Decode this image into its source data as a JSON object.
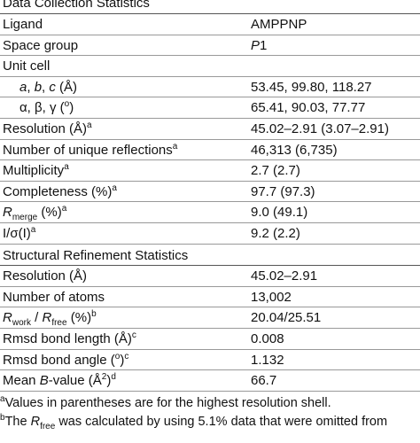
{
  "table": {
    "sections": [
      {
        "title": "Data Collection Statistics",
        "rows": [
          {
            "label": [
              {
                "text": "Ligand"
              }
            ],
            "value": [
              {
                "text": "AMPPNP"
              }
            ]
          },
          {
            "label": [
              {
                "text": "Space group"
              }
            ],
            "value": [
              {
                "italic": "P"
              },
              {
                "text": "1"
              }
            ]
          },
          {
            "label": [
              {
                "text": "Unit cell"
              }
            ],
            "value": []
          },
          {
            "indent": true,
            "label": [
              {
                "italic": "a"
              },
              {
                "text": ", "
              },
              {
                "italic": "b"
              },
              {
                "text": ", "
              },
              {
                "italic": "c"
              },
              {
                "text": " (Å)"
              }
            ],
            "value": [
              {
                "text": "53.45, 99.80, 118.27"
              }
            ]
          },
          {
            "indent": true,
            "label": [
              {
                "text": "α, β, γ ("
              },
              {
                "sup": "o"
              },
              {
                "text": ")"
              }
            ],
            "value": [
              {
                "text": "65.41, 90.03, 77.77"
              }
            ]
          },
          {
            "label": [
              {
                "text": "Resolution (Å)"
              },
              {
                "sup": "a"
              }
            ],
            "value": [
              {
                "text": "45.02–2.91 (3.07–2.91)"
              }
            ]
          },
          {
            "label": [
              {
                "text": "Number of unique reflections"
              },
              {
                "sup": "a"
              }
            ],
            "value": [
              {
                "text": "46,313 (6,735)"
              }
            ]
          },
          {
            "label": [
              {
                "text": "Multiplicity"
              },
              {
                "sup": "a"
              }
            ],
            "value": [
              {
                "text": "2.7 (2.7)"
              }
            ]
          },
          {
            "label": [
              {
                "text": "Completeness (%)"
              },
              {
                "sup": "a"
              }
            ],
            "value": [
              {
                "text": "97.7 (97.3)"
              }
            ]
          },
          {
            "label": [
              {
                "italic": "R"
              },
              {
                "sub": "merge"
              },
              {
                "text": " (%)"
              },
              {
                "sup": "a"
              }
            ],
            "value": [
              {
                "text": "9.0 (49.1)"
              }
            ]
          },
          {
            "label": [
              {
                "text": "I/σ(I)"
              },
              {
                "sup": "a"
              }
            ],
            "value": [
              {
                "text": "9.2 (2.2)"
              }
            ]
          }
        ]
      },
      {
        "title": "Structural Refinement Statistics",
        "rows": [
          {
            "label": [
              {
                "text": "Resolution (Å)"
              }
            ],
            "value": [
              {
                "text": "45.02–2.91"
              }
            ]
          },
          {
            "label": [
              {
                "text": "Number of atoms"
              }
            ],
            "value": [
              {
                "text": "13,002"
              }
            ]
          },
          {
            "label": [
              {
                "italic": "R"
              },
              {
                "sub": "work"
              },
              {
                "text": " / "
              },
              {
                "italic": "R"
              },
              {
                "sub": "free"
              },
              {
                "text": " (%)"
              },
              {
                "sup": "b"
              }
            ],
            "value": [
              {
                "text": "20.04/25.51"
              }
            ]
          },
          {
            "label": [
              {
                "text": "Rmsd bond length (Å)"
              },
              {
                "sup": "c"
              }
            ],
            "value": [
              {
                "text": "0.008"
              }
            ]
          },
          {
            "label": [
              {
                "text": "Rmsd bond angle ("
              },
              {
                "sup": "o"
              },
              {
                "text": ")"
              },
              {
                "sup": "c"
              }
            ],
            "value": [
              {
                "text": "1.132"
              }
            ]
          },
          {
            "label": [
              {
                "text": "Mean "
              },
              {
                "italic": "B"
              },
              {
                "text": "-value (Å"
              },
              {
                "sup": "2"
              },
              {
                "text": ")"
              },
              {
                "sup": "d"
              }
            ],
            "value": [
              {
                "text": "66.7"
              }
            ]
          }
        ]
      }
    ],
    "footnotes": [
      [
        {
          "sup": "a"
        },
        {
          "text": "Values in parentheses are for the highest resolution shell."
        }
      ],
      [
        {
          "sup": "b"
        },
        {
          "text": "The "
        },
        {
          "italic": "R"
        },
        {
          "sub": "free"
        },
        {
          "text": " was calculated by using 5.1% data that were omitted from"
        }
      ]
    ]
  }
}
